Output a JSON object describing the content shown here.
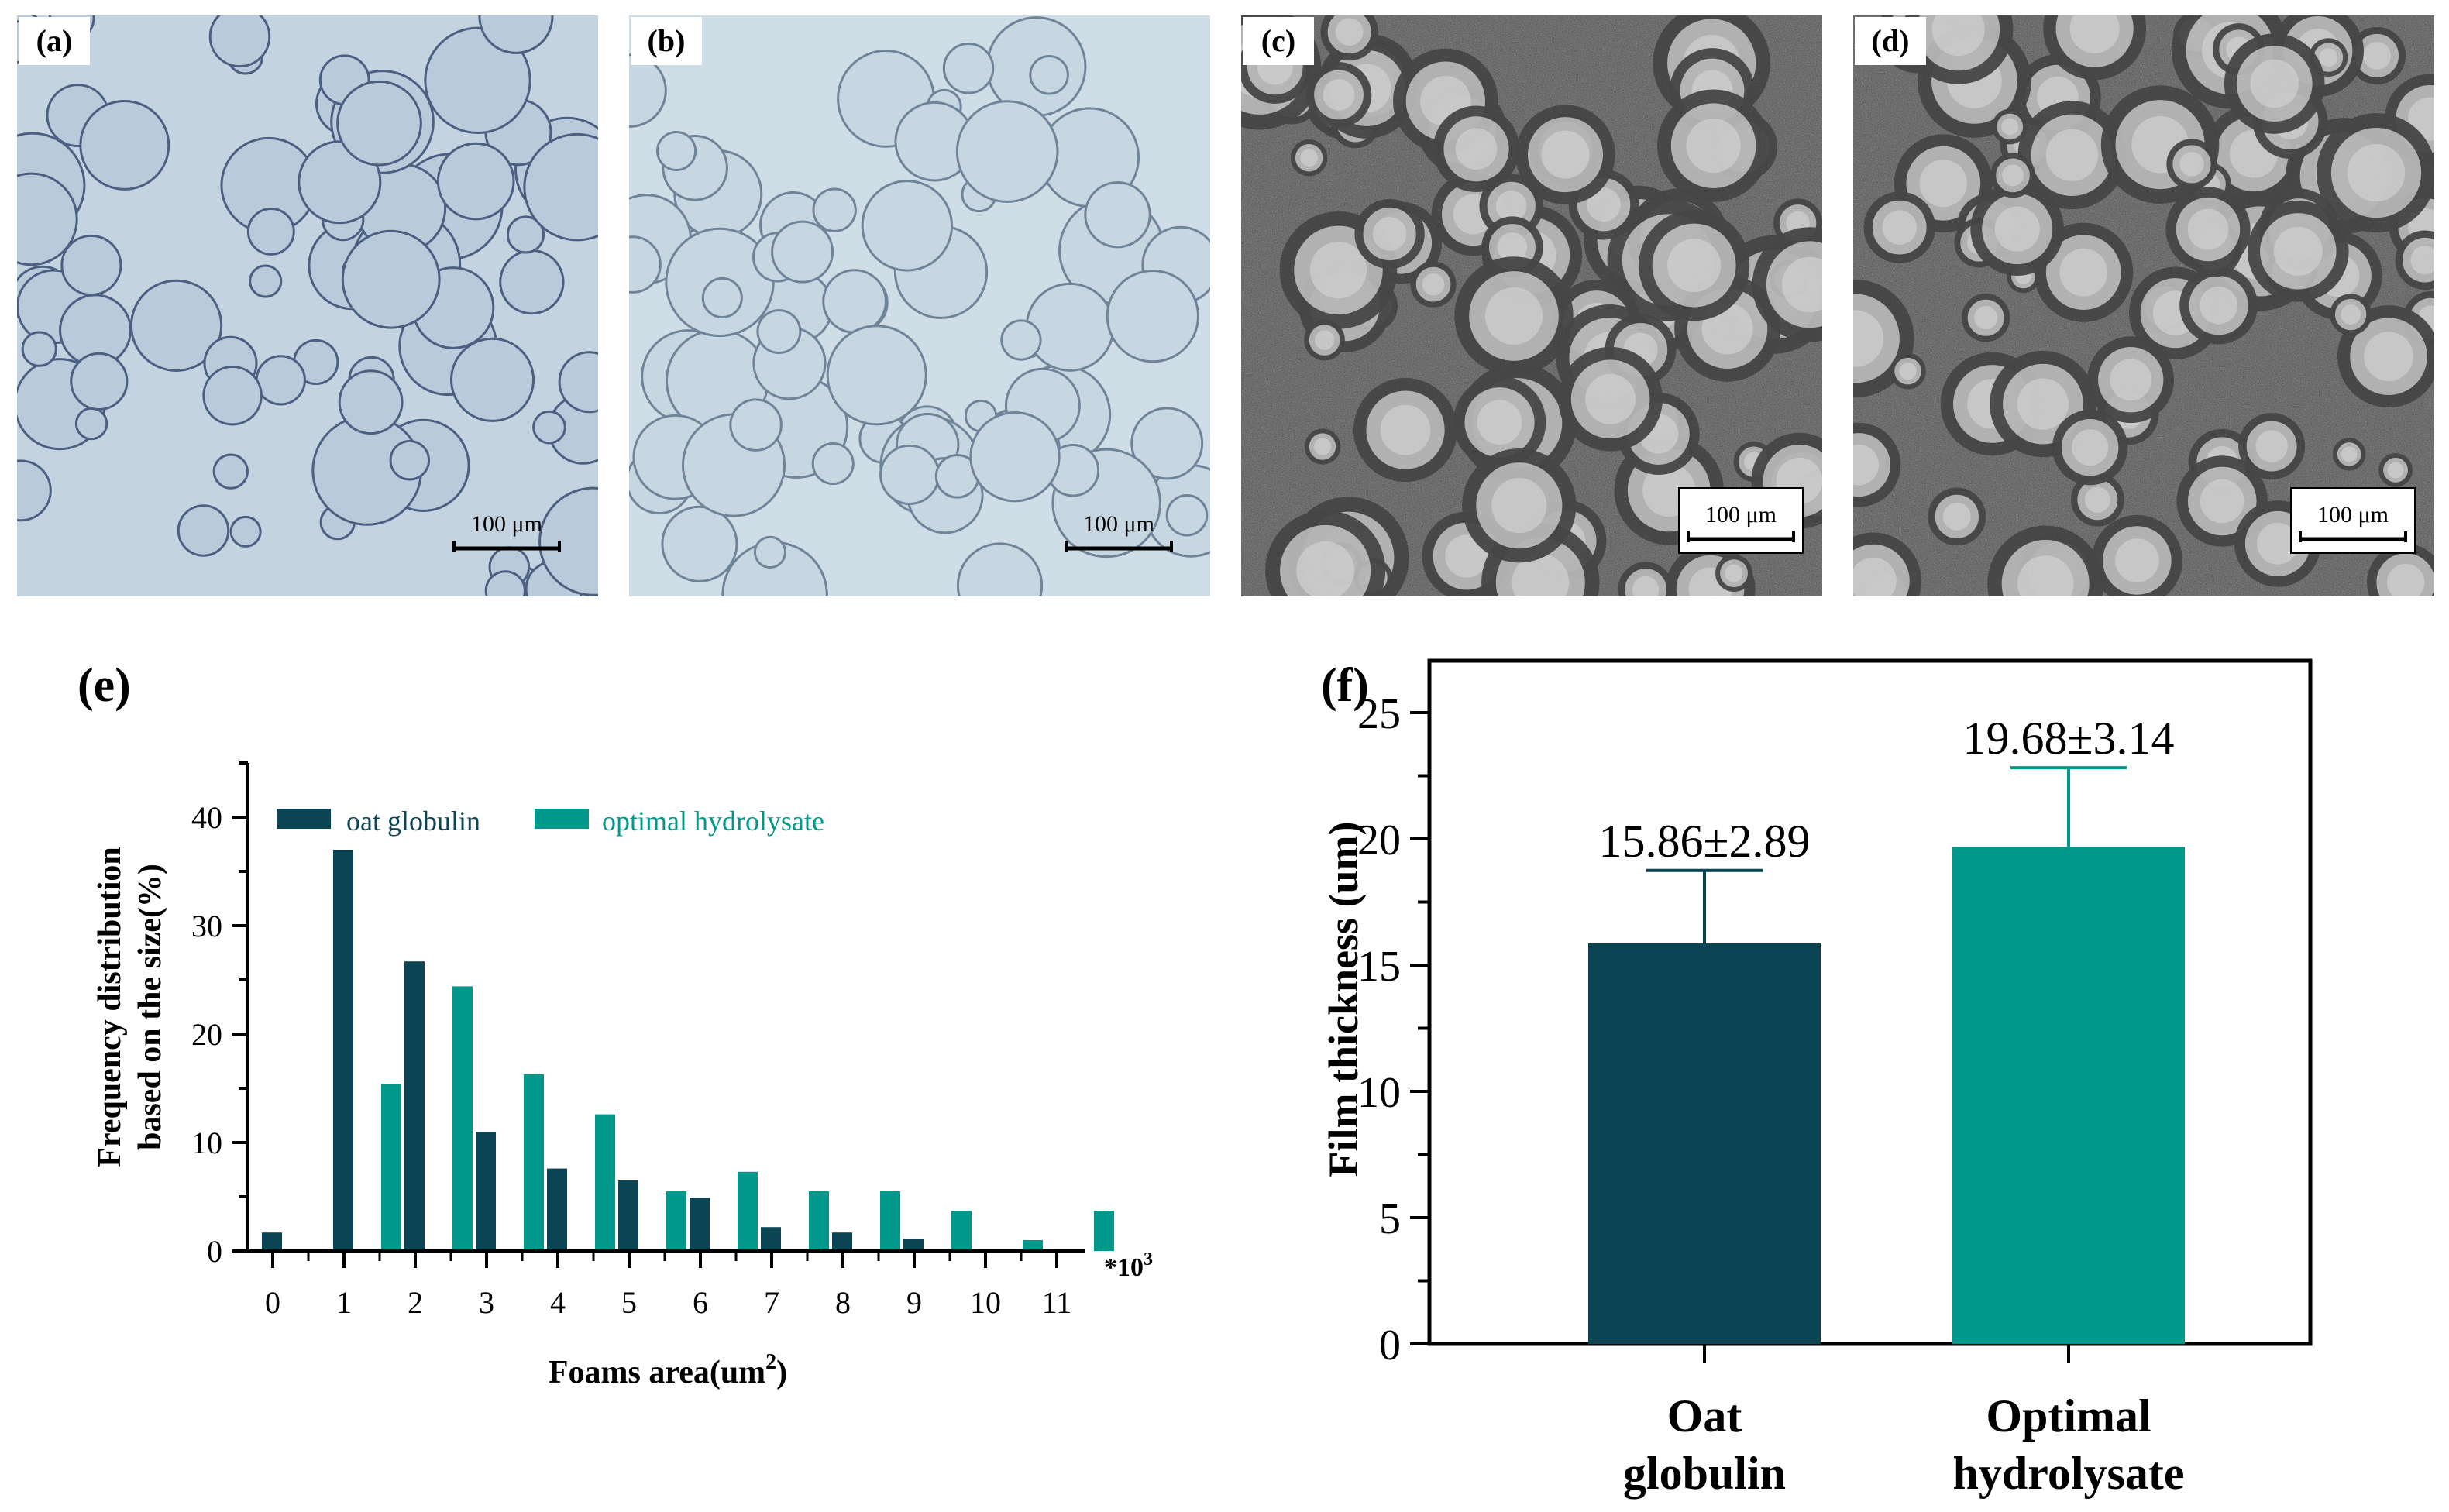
{
  "micrographs": [
    {
      "label": "(a)",
      "scale_bar": "100  μm",
      "style": "light",
      "variant": 1
    },
    {
      "label": "(b)",
      "scale_bar": "100  μm",
      "style": "light",
      "variant": 2
    },
    {
      "label": "(c)",
      "scale_bar": "100  μm",
      "style": "dark",
      "variant": 3
    },
    {
      "label": "(d)",
      "scale_bar": "100  μm",
      "style": "dark",
      "variant": 4
    }
  ],
  "chart_data": [
    {
      "panel": "(e)",
      "type": "bar",
      "title": "",
      "xlabel": "Foams area(um",
      "xlabel_sup": "2",
      "xlabel_end": ")",
      "ylabel_line1": "Frequency distribution",
      "ylabel_line2": "based on the size(%)",
      "x_multiplier": "*10",
      "x_multiplier_sup": "3",
      "categories": [
        "0",
        "1",
        "2",
        "3",
        "4",
        "5",
        "6",
        "7",
        "8",
        "9",
        "10",
        "11"
      ],
      "ylim": [
        0,
        45
      ],
      "yticks": [
        0,
        10,
        20,
        30,
        40
      ],
      "legend": "top-left",
      "series": [
        {
          "name": "oat globulin",
          "color": "#0b4452",
          "values": [
            1.7,
            37.0,
            26.7,
            11.0,
            7.6,
            6.5,
            4.9,
            2.2,
            1.7,
            1.1,
            0,
            0
          ]
        },
        {
          "name": "optimal hydrolysate",
          "color": "#00988a",
          "values": [
            0,
            15.4,
            24.4,
            16.3,
            12.6,
            5.5,
            7.3,
            5.5,
            5.5,
            3.7,
            1.0,
            3.7
          ]
        }
      ]
    },
    {
      "panel": "(f)",
      "type": "bar",
      "title": "",
      "xlabel": "",
      "ylabel": "Film thickness (um)",
      "ylim": [
        0,
        27
      ],
      "yticks": [
        0,
        5,
        10,
        15,
        20,
        25
      ],
      "bars": [
        {
          "line1": "Oat",
          "line2": "globulin",
          "value": 15.86,
          "error": 2.89,
          "annotation": "15.86±2.89",
          "color": "#0b4452"
        },
        {
          "line1": "Optimal",
          "line2": "hydrolysate",
          "value": 19.68,
          "error": 3.14,
          "annotation": "19.68±3.14",
          "color": "#00988a"
        }
      ]
    }
  ]
}
